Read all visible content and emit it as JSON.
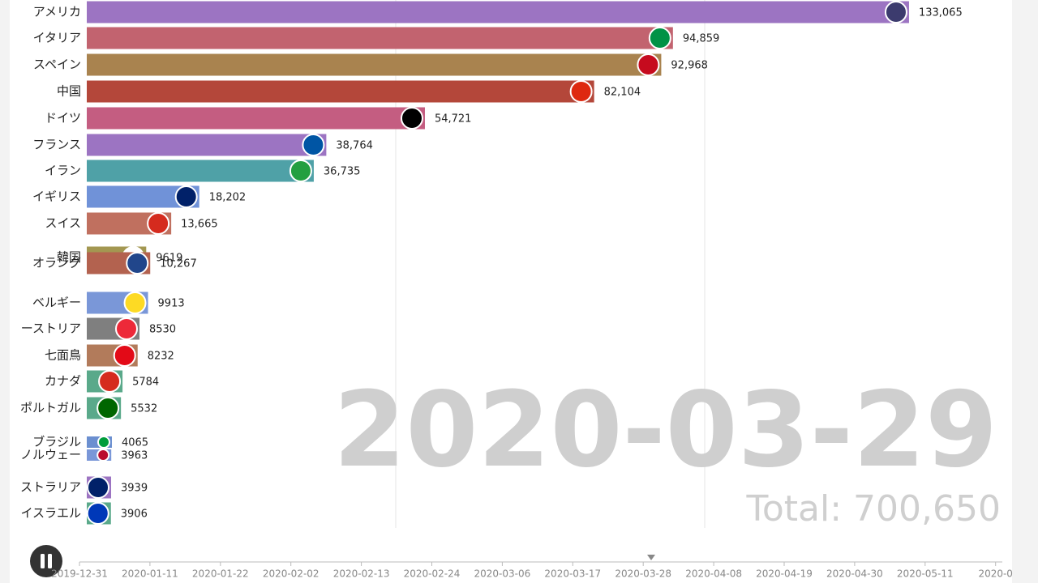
{
  "chart_data": {
    "type": "bar",
    "orientation": "horizontal",
    "categories": [
      "アメリカ",
      "イタリア",
      "スペイン",
      "中国",
      "ドイツ",
      "フランス",
      "イラン",
      "イギリス",
      "スイス",
      "韓国",
      "オラング",
      "ベルギー",
      "ーストリア",
      "七面鳥",
      "カナダ",
      "ポルトガル",
      "ブラジル",
      "ノルウェー",
      "ストラリア",
      "イスラエル"
    ],
    "values": [
      133065,
      94859,
      92968,
      82104,
      54721,
      38764,
      36735,
      18202,
      13665,
      9619,
      10267,
      9913,
      8530,
      8232,
      5784,
      5532,
      4065,
      3963,
      3939,
      3906
    ],
    "value_labels": [
      "133,065",
      "94,859",
      "92,968",
      "82,104",
      "54,721",
      "38,764",
      "36,735",
      "18,202",
      "13,665",
      "9619",
      "10,267",
      "9913",
      "8530",
      "8232",
      "5784",
      "5532",
      "4065",
      "3963",
      "3939",
      "3906"
    ],
    "colors": [
      "#9c74c2",
      "#c2636f",
      "#a9834f",
      "#b4473a",
      "#c45d81",
      "#9c74c2",
      "#4fa1a7",
      "#7092d8",
      "#c0705f",
      "#a39751",
      "#b3624f",
      "#7a97d8",
      "#7f7f7f",
      "#b27b5b",
      "#5aa98a",
      "#5aa98a",
      "#6b8fd0",
      "#7a97d8",
      "#9c74c2",
      "#5aa98a"
    ],
    "xlim": [
      0,
      150000
    ],
    "xticks": [
      50000,
      100000
    ],
    "grid": true,
    "date": "2020-03-29",
    "total": "Total: 700,650"
  },
  "timeline": {
    "labels": [
      "2019-12-31",
      "2020-01-11",
      "2020-01-22",
      "2020-02-02",
      "2020-02-13",
      "2020-02-24",
      "2020-03-06",
      "2020-03-17",
      "2020-03-28",
      "2020-04-08",
      "2020-04-19",
      "2020-04-30",
      "2020-05-11",
      "2020-0"
    ]
  }
}
